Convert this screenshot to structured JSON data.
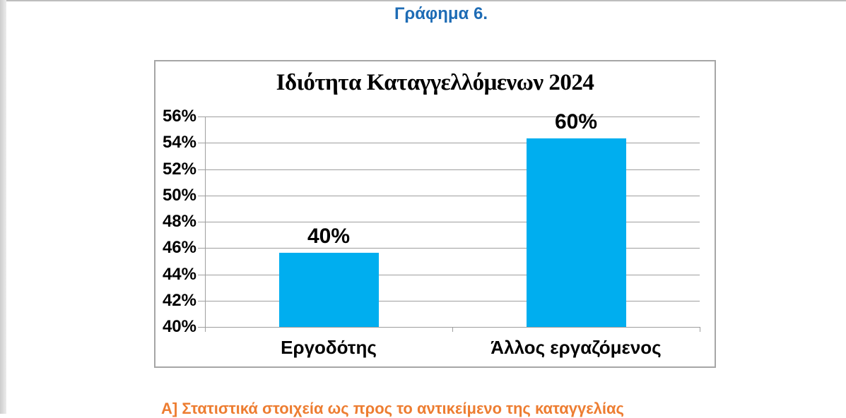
{
  "page": {
    "header": "Γράφημα 6.",
    "section_heading": "Α] Στατιστικά στοιχεία ως προς το αντικείμενο της καταγγελίας"
  },
  "colors": {
    "header_blue": "#1e6cb5",
    "section_orange": "#ed7d31",
    "bar_fill": "#00aeef",
    "chart_border": "#a6a6a6",
    "gridline": "#9e9e9e"
  },
  "chart_data": {
    "type": "bar",
    "title": "Ιδιότητα Καταγγελλόμενων 2024",
    "categories": [
      "Εργοδότης",
      "Άλλος εργαζόμενος"
    ],
    "values": [
      40,
      60
    ],
    "data_labels": [
      "40%",
      "60%"
    ],
    "values_as_drawn_on_axis": [
      45.65,
      54.35
    ],
    "ylim": [
      40,
      56
    ],
    "y_ticks_top_to_bottom": [
      "56%",
      "54%",
      "52%",
      "50%",
      "48%",
      "46%",
      "44%",
      "42%",
      "40%"
    ],
    "y_tick_step_pct": 2,
    "grid": true,
    "legend": false
  }
}
